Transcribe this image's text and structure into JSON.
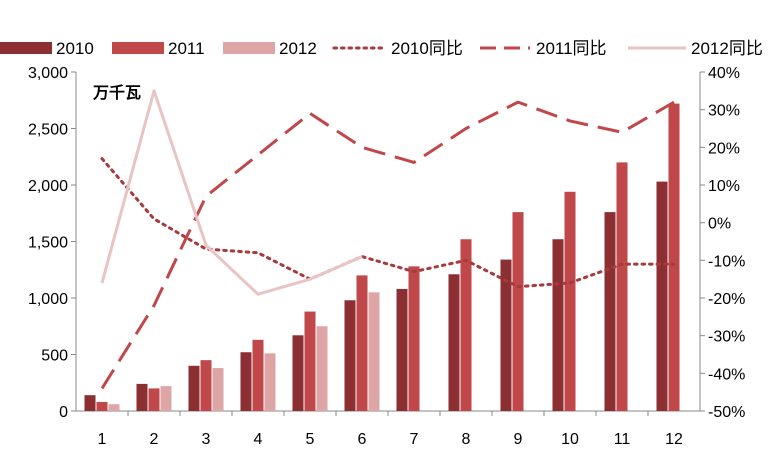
{
  "chart_data": {
    "type": "bar-line-combo",
    "title": "",
    "unit_label": "万千瓦",
    "categories": [
      "1",
      "2",
      "3",
      "4",
      "5",
      "6",
      "7",
      "8",
      "9",
      "10",
      "11",
      "12"
    ],
    "left_axis": {
      "ylim": [
        0,
        3000
      ],
      "ticks": [
        "0",
        "500",
        "1,000",
        "1,500",
        "2,000",
        "2,500",
        "3,000"
      ],
      "tick_values": [
        0,
        500,
        1000,
        1500,
        2000,
        2500,
        3000
      ]
    },
    "right_axis": {
      "ylim": [
        -50,
        40
      ],
      "ticks": [
        "-50%",
        "-40%",
        "-30%",
        "-20%",
        "-10%",
        "0%",
        "10%",
        "20%",
        "30%",
        "40%"
      ],
      "tick_values": [
        -50,
        -40,
        -30,
        -20,
        -10,
        0,
        10,
        20,
        30,
        40
      ]
    },
    "bar_series": [
      {
        "name": "2010",
        "color": "#8B2F32",
        "values": [
          140,
          240,
          400,
          520,
          670,
          980,
          1080,
          1210,
          1340,
          1520,
          1760,
          2030
        ]
      },
      {
        "name": "2011",
        "color": "#C0474A",
        "values": [
          80,
          200,
          450,
          630,
          880,
          1200,
          1280,
          1520,
          1760,
          1940,
          2200,
          2720
        ]
      },
      {
        "name": "2012",
        "color": "#DDA5A5",
        "values": [
          60,
          220,
          380,
          510,
          750,
          1050,
          null,
          null,
          null,
          null,
          null,
          null
        ]
      }
    ],
    "line_series": [
      {
        "name": "2010同比",
        "color": "#A63A3C",
        "style": "dotted",
        "values": [
          17,
          1,
          -7,
          -8,
          -15,
          -9,
          -13,
          -10,
          -17,
          -16,
          -11,
          -11
        ]
      },
      {
        "name": "2011同比",
        "color": "#C0474A",
        "style": "dashed",
        "values": [
          -44,
          -22,
          7,
          18,
          29,
          20,
          16,
          25,
          32,
          27,
          24,
          32
        ]
      },
      {
        "name": "2012同比",
        "color": "#E8C4C4",
        "style": "solid",
        "values": [
          -16,
          35,
          -6,
          -19,
          -15,
          -9,
          null,
          null,
          null,
          null,
          null,
          null
        ]
      }
    ],
    "legend_position": "top"
  }
}
